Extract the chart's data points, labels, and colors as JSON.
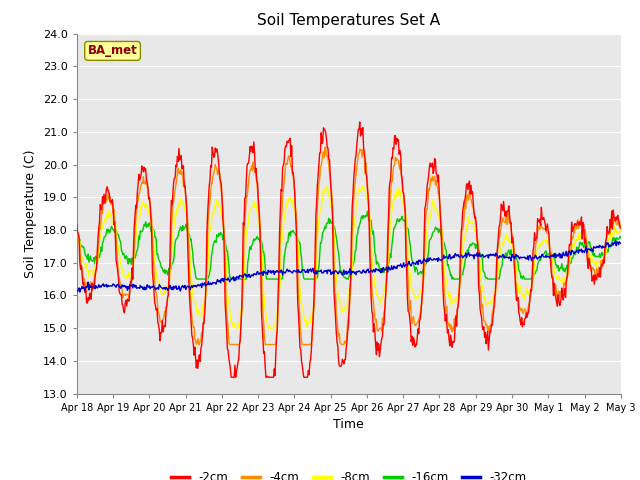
{
  "title": "Soil Temperatures Set A",
  "xlabel": "Time",
  "ylabel": "Soil Temperature (C)",
  "ylim": [
    13.0,
    24.0
  ],
  "yticks": [
    13.0,
    14.0,
    15.0,
    16.0,
    17.0,
    18.0,
    19.0,
    20.0,
    21.0,
    22.0,
    23.0,
    24.0
  ],
  "xtick_labels": [
    "Apr 18",
    "Apr 19",
    "Apr 20",
    "Apr 21",
    "Apr 22",
    "Apr 23",
    "Apr 24",
    "Apr 25",
    "Apr 26",
    "Apr 27",
    "Apr 28",
    "Apr 29",
    "Apr 30",
    "May 1",
    "May 2",
    "May 3"
  ],
  "legend_label": "BA_met",
  "series_colors": [
    "#FF0000",
    "#FF8C00",
    "#FFFF00",
    "#00CC00",
    "#0000CC"
  ],
  "series_labels": [
    "-2cm",
    "-4cm",
    "-8cm",
    "-16cm",
    "-32cm"
  ],
  "fig_bg": "#FFFFFF",
  "plot_bg": "#E8E8E8",
  "grid_color": "#FFFFFF"
}
